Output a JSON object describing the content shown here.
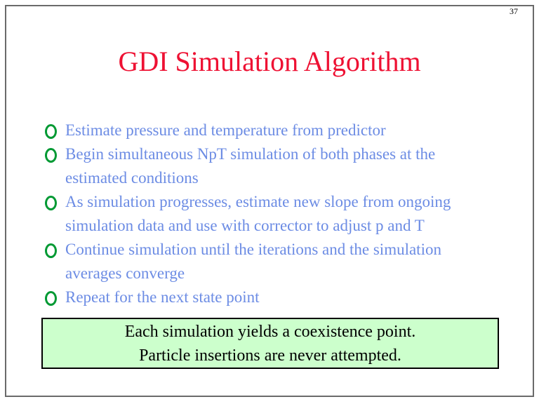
{
  "page_number": "37",
  "title": "GDI Simulation Algorithm",
  "bullets": {
    "icon": "circle-outline-icon",
    "items": [
      [
        "Estimate pressure and temperature from predictor"
      ],
      [
        "Begin simultaneous NpT simulation of both phases at the",
        "estimated conditions"
      ],
      [
        "As simulation progresses, estimate new slope from ongoing",
        "simulation data and use with corrector to adjust p and T"
      ],
      [
        "Continue simulation until the iterations and the simulation",
        "averages converge"
      ],
      [
        "Repeat for the next state point"
      ]
    ]
  },
  "callout": {
    "line1": "Each simulation yields a coexistence point.",
    "line2": "Particle insertions are never attempted."
  },
  "colors": {
    "title_red": "#ee1133",
    "body_blue": "#6c8ce4",
    "bullet_green": "#009933",
    "callout_bg": "#ccffcc",
    "callout_border": "#000000",
    "frame_gray": "#6a6a6a"
  }
}
